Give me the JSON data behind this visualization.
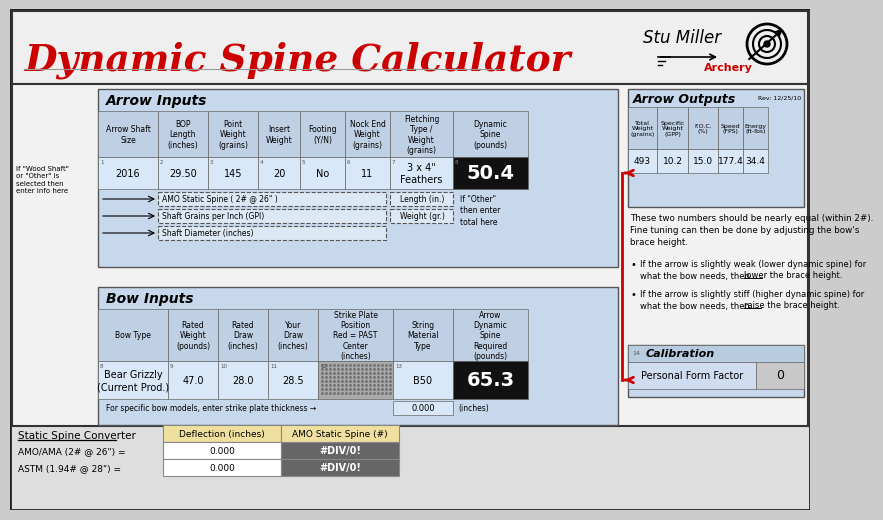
{
  "title": "Dynamic Spine Calculator",
  "title_color": "#CC0000",
  "rev_text": "Rev: 12/25/10",
  "arrow_inputs_header": "Arrow Inputs",
  "arrow_outputs_header": "Arrow Outputs",
  "bow_inputs_header": "Bow Inputs",
  "calibration_header": "Calibration",
  "arrow_col_headers": [
    "Arrow Shaft\nSize",
    "BOP\nLength\n(inches)",
    "Point\nWeight\n(grains)",
    "Insert\nWeight",
    "Footing\n(Y/N)",
    "Nock End\nWeight\n(grains)",
    "Fletching\nType /\nWeight\n(grains)",
    "Dynamic\nSpine\n(pounds)"
  ],
  "arrow_row_vals": [
    "2016",
    "29.50",
    "145",
    "20",
    "No",
    "11",
    "3 x 4\"\nFeathers",
    "50.4"
  ],
  "arrow_outputs_col_headers": [
    "Total\nWeight\n(grains)",
    "Specific\nWeight\n(GPP)",
    "F.O.C.\n(%)",
    "Speed\n(FPS)",
    "Energy\n(ft-lbs)"
  ],
  "arrow_outputs_vals": [
    "493",
    "10.2",
    "15.0",
    "177.4",
    "34.4"
  ],
  "bow_col_headers": [
    "Bow Type",
    "Rated\nWeight\n(pounds)",
    "Rated\nDraw\n(inches)",
    "Your\nDraw\n(inches)",
    "Strike Plate\nPosition\nRed = PAST\nCenter\n(inches)",
    "String\nMaterial\nType",
    "Arrow\nDynamic\nSpine\nRequired\n(pounds)"
  ],
  "bow_row_nums": [
    "8",
    "9",
    "10",
    "11",
    "12",
    "13",
    ""
  ],
  "bow_row_vals": [
    "Bear Grizzly\n(Current Prod.)",
    "47.0",
    "28.0",
    "28.5",
    "",
    "B50",
    "65.3"
  ],
  "static_rows": [
    [
      "AMO Static Spine ( 2# @ 26\" )",
      "Length (in.)"
    ],
    [
      "Shaft Grains per Inch (GPI)",
      "Weight (gr.)"
    ],
    [
      "Shaft Diameter (inches)",
      ""
    ]
  ],
  "if_other_text": "If \"Other\"\nthen enter\ntotal here",
  "if_wood_text": "If \"Wood Shaft\"\nor \"Other\" is\nselected then\nenter info here",
  "bottom_text": "For specific bow models, enter strike plate thickness →",
  "bottom_val": "0.000",
  "bottom_unit": "(inches)",
  "calibration_label": "Personal Form Factor",
  "calibration_val": "0",
  "static_spine_label": "Static Spine Converter",
  "amo_label": "AMO/AMA (2# @ 26\") =",
  "astm_label": "ASTM (1.94# @ 28\") =",
  "deflection_header": "Deflection (inches)",
  "amo_static_header": "AMO Static Spine (#)",
  "deflection_amo": "0.000",
  "deflection_astm": "0.000",
  "amo_static_val": "#DIV/0!",
  "astm_static_val": "#DIV/0!",
  "note_text": "These two numbers should be nearly equal (within 2#).\nFine tuning can then be done by adjusting the bow's\nbrace height.",
  "bullet1_pre": "If the arrow is slightly weak (lower dynamic spine) for\nwhat the bow needs, then ",
  "bullet1_ul": "lower",
  "bullet1_post": " the brace height.",
  "bullet2_pre": "If the arrow is slightly stiff (higher dynamic spine) for\nwhat the bow needs, then ",
  "bullet2_ul": "raise",
  "bullet2_post": " the brace height."
}
